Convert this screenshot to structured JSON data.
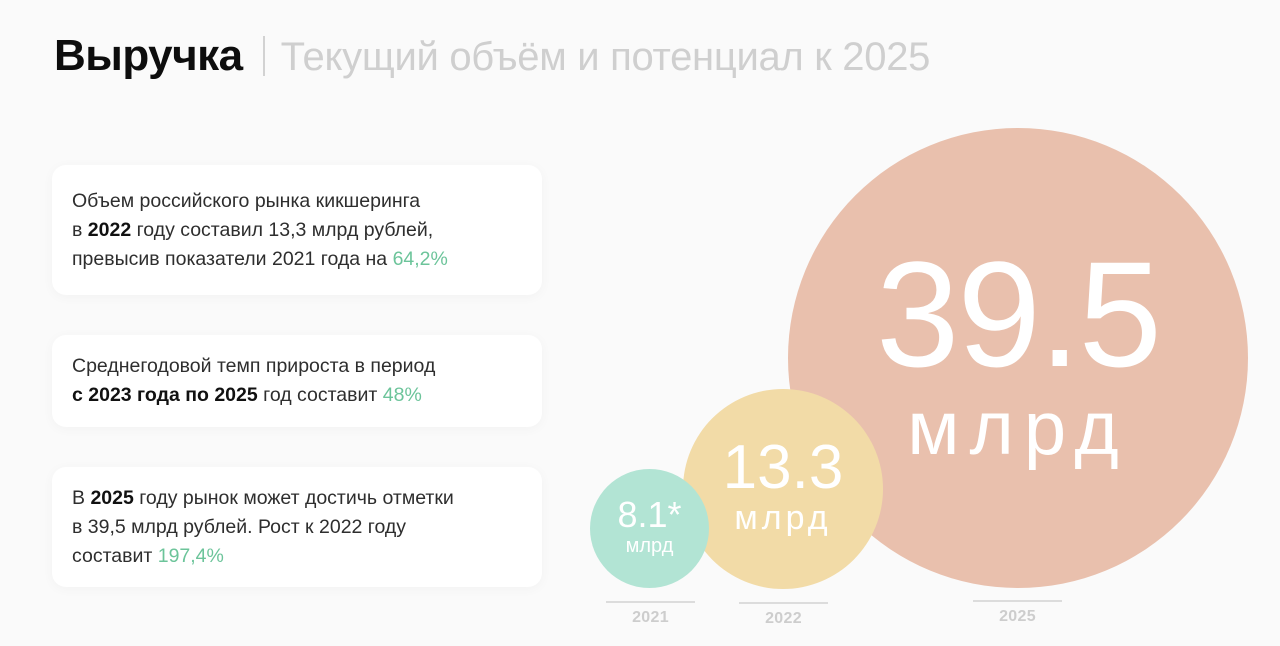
{
  "header": {
    "title": "Выручка",
    "subtitle": "Текущий объём и потенциал к 2025"
  },
  "cards": [
    {
      "line1": "Объем российского рынка кикшеринга",
      "pre_bold": "в ",
      "bold": "2022",
      "mid": " году  составил 13,3 млрд рублей,",
      "line3": "превысив показатели 2021 года на ",
      "accent": "64,2%"
    },
    {
      "line1": "Среднегодовой темп прироста в период",
      "bold": "с 2023 года по 2025",
      "mid": " год составит ",
      "accent": "48%"
    },
    {
      "pre_bold": "В ",
      "bold": "2025",
      "mid": " году рынок может достичь отметки",
      "line2": "в 39,5 млрд рублей. Рост к 2022 году",
      "line3": "составит ",
      "accent": "197,4%"
    }
  ],
  "colors": {
    "accent_green": "#6cc49a",
    "bubble_2021": "#b2e4d4",
    "bubble_2022": "#f2dba7",
    "bubble_2025": "#e9c0ad"
  },
  "chart_data": {
    "type": "bubble",
    "title": "Выручка | Текущий объём и потенциал к 2025",
    "categories": [
      "2021",
      "2022",
      "2025"
    ],
    "values": [
      8.1,
      13.3,
      39.5
    ],
    "unit": "млрд",
    "labels": [
      "8.1*",
      "13.3",
      "39.5"
    ],
    "annotations": [
      "* 2021 value marked with asterisk"
    ],
    "colors": [
      "#b2e4d4",
      "#f2dba7",
      "#e9c0ad"
    ],
    "xlabel": "",
    "ylabel": "",
    "grid": false,
    "legend": "none"
  },
  "bubbles": {
    "b2021": {
      "value": "8.1*",
      "unit": "млрд",
      "year": "2021"
    },
    "b2022": {
      "value": "13.3",
      "unit": "млрд",
      "year": "2022"
    },
    "b2025": {
      "value": "39.5",
      "unit": "млрд",
      "year": "2025"
    }
  }
}
